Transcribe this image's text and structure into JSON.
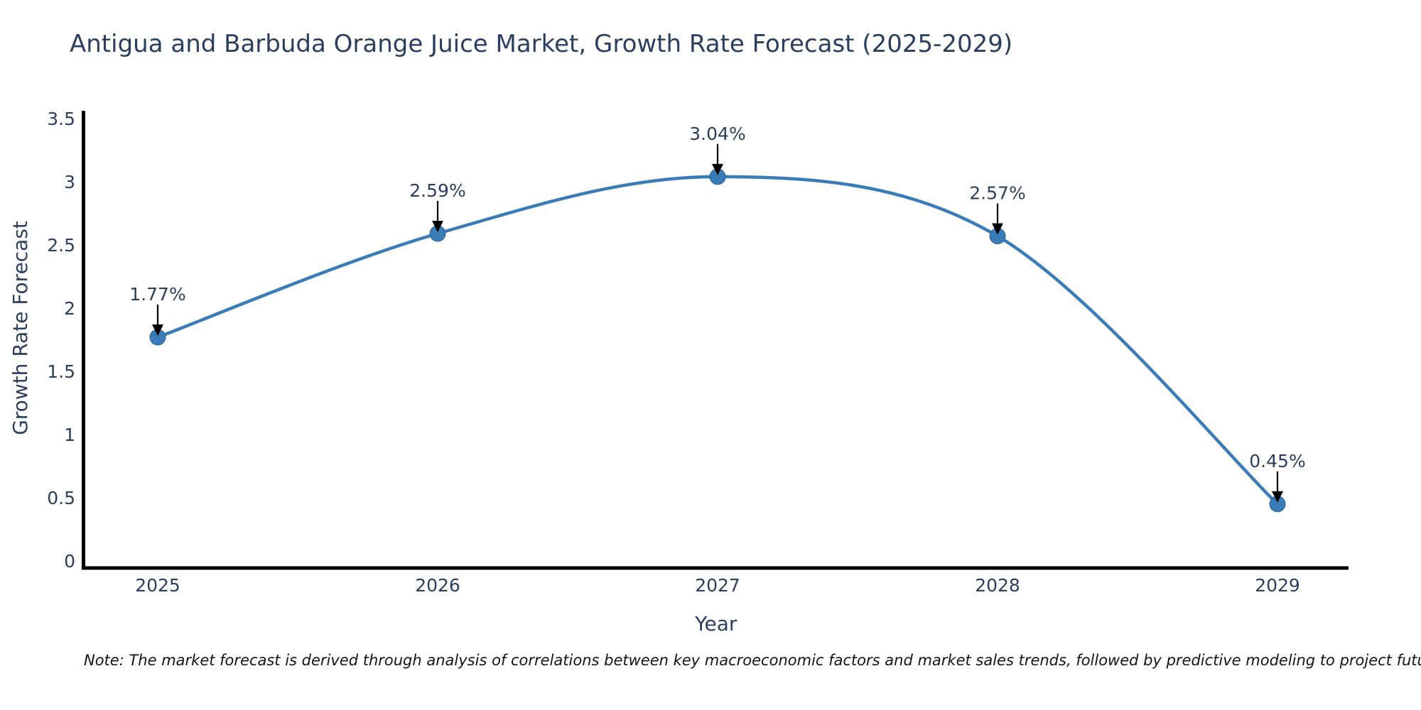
{
  "note": "Note: The market forecast is derived through analysis of correlations between key macroeconomic factors and market sales trends, followed by predictive modeling to project future sales",
  "colors": {
    "background": "#ffffff",
    "title_text": "#2a3f5f",
    "tick_text": "#2a3f5f",
    "axis_line": "#000000",
    "series_line": "#3a7cb8",
    "marker_fill": "#3a7cb8",
    "marker_border": "#2a6399",
    "annotation_text": "#2a3f5f",
    "annotation_arrow": "#000000",
    "note_text": "#141414"
  },
  "chart_data": {
    "type": "line",
    "title": "Antigua and Barbuda Orange Juice Market, Growth Rate Forecast (2025-2029)",
    "xlabel": "Year",
    "ylabel": "Growth Rate Forecast",
    "categories": [
      "2025",
      "2026",
      "2027",
      "2028",
      "2029"
    ],
    "series": [
      {
        "name": "Growth Rate Forecast",
        "values": [
          1.77,
          2.59,
          3.04,
          2.57,
          0.45
        ],
        "point_labels": [
          "1.77%",
          "2.59%",
          "3.04%",
          "2.57%",
          "0.45%"
        ]
      }
    ],
    "yticks": [
      0,
      0.5,
      1,
      1.5,
      2,
      2.5,
      3,
      3.5
    ],
    "ylim": [
      0,
      3.5
    ],
    "line_shape": "spline",
    "grid": false,
    "legend_position": "none",
    "annotations": "value labels with downward arrows above each point"
  }
}
